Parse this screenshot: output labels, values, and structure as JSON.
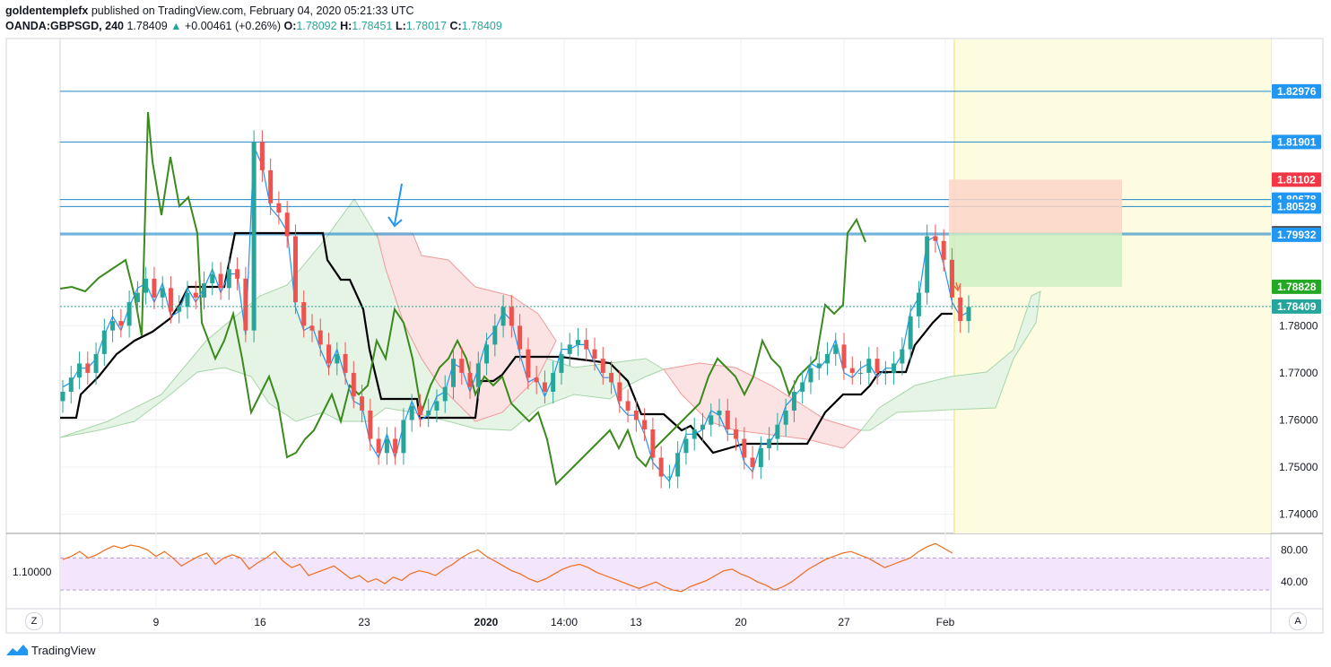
{
  "header": {
    "author": "goldentemplefx",
    "published_text": "published on TradingView.com, February 04, 2020 05:21:33 UTC",
    "symbol": "OANDA:GBPSGD, 240",
    "last": "1.78409",
    "change": "+0.00461 (+0.26%)",
    "o_label": "O:",
    "o_value": "1.78092",
    "h_label": "H:",
    "h_value": "1.78451",
    "l_label": "L:",
    "l_value": "1.78017",
    "c_label": "C:",
    "c_value": "1.78409"
  },
  "footer": {
    "brand": "TradingView"
  },
  "buttons": {
    "z": "Z",
    "a": "A"
  },
  "chart_data": {
    "type": "line",
    "ylim": [
      1.7365,
      1.84
    ],
    "y_ticks": [
      "1.74000",
      "1.75000",
      "1.76000",
      "1.77000",
      "1.78000"
    ],
    "x_tick_labels": [
      "9",
      "16",
      "23",
      "2020",
      "14:00",
      "13",
      "20",
      "27",
      "Feb"
    ],
    "price_levels": [
      1.82976,
      1.81901,
      1.80678,
      1.80529,
      1.79965,
      1.79932
    ],
    "price_tags": [
      {
        "label": "1.82976",
        "value": 1.82976,
        "color": "#2196f3"
      },
      {
        "label": "1.81901",
        "value": 1.81901,
        "color": "#2196f3"
      },
      {
        "label": "1.81102",
        "value": 1.81102,
        "color": "#f23645"
      },
      {
        "label": "1.80678",
        "value": 1.80678,
        "color": "#2196f3"
      },
      {
        "label": "1.80529",
        "value": 1.80529,
        "color": "#2196f3"
      },
      {
        "label": "1.79965",
        "value": 1.79965,
        "color": "#4a4a4a"
      },
      {
        "label": "1.79932",
        "value": 1.79932,
        "color": "#2196f3"
      },
      {
        "label": "1.78828",
        "value": 1.78828,
        "color": "#22a822"
      },
      {
        "label": "1.78409",
        "value": 1.78409,
        "color": "#26a69a"
      }
    ],
    "last_price": 1.78409,
    "position": {
      "stop": 1.81102,
      "entry": 1.79965,
      "target": 1.78828
    },
    "series": [
      {
        "values": [
          1.766,
          1.769,
          1.772,
          1.77,
          1.774,
          1.779,
          1.781,
          1.78,
          1.785,
          1.787,
          1.79,
          1.786,
          1.788,
          1.783,
          1.784,
          1.787,
          1.786,
          1.789,
          1.791,
          1.788,
          1.792,
          1.79,
          1.779,
          1.819,
          1.813,
          1.806,
          1.804,
          1.799,
          1.785,
          1.78,
          1.779,
          1.776,
          1.772,
          1.774,
          1.77,
          1.765,
          1.762,
          1.756,
          1.753,
          1.756,
          1.753,
          1.76,
          1.763,
          1.761,
          1.762,
          1.764,
          1.767,
          1.773,
          1.77,
          1.767,
          1.772,
          1.776,
          1.78,
          1.784,
          1.78,
          1.775,
          1.769,
          1.768,
          1.766,
          1.77,
          1.774,
          1.776,
          1.777,
          1.775,
          1.773,
          1.77,
          1.768,
          1.764,
          1.762,
          1.76,
          1.758,
          1.752,
          1.748,
          1.748,
          1.753,
          1.756,
          1.758,
          1.759,
          1.761,
          1.762,
          1.758,
          1.756,
          1.752,
          1.75,
          1.754,
          1.756,
          1.759,
          1.762,
          1.766,
          1.768,
          1.771,
          1.772,
          1.774,
          1.776,
          1.771,
          1.77,
          1.77,
          1.773,
          1.77,
          1.77,
          1.772,
          1.775,
          1.782,
          1.787,
          1.799,
          1.798,
          1.794,
          1.786,
          1.781,
          1.784
        ]
      }
    ],
    "rsi": {
      "label": "1.10000",
      "ticks": [
        "80.00",
        "40.00"
      ],
      "band": [
        70,
        30
      ],
      "ylim": [
        10,
        95
      ],
      "values": [
        68,
        72,
        78,
        70,
        74,
        80,
        85,
        82,
        86,
        84,
        80,
        72,
        78,
        70,
        60,
        66,
        72,
        76,
        62,
        70,
        74,
        70,
        56,
        64,
        70,
        78,
        66,
        58,
        62,
        48,
        52,
        56,
        60,
        52,
        44,
        48,
        40,
        44,
        38,
        46,
        42,
        50,
        54,
        52,
        48,
        56,
        62,
        70,
        76,
        80,
        72,
        66,
        60,
        54,
        50,
        44,
        40,
        44,
        50,
        56,
        60,
        62,
        58,
        52,
        48,
        44,
        40,
        36,
        32,
        36,
        40,
        34,
        30,
        28,
        34,
        38,
        42,
        48,
        54,
        56,
        50,
        46,
        40,
        36,
        30,
        34,
        40,
        48,
        56,
        62,
        68,
        72,
        76,
        78,
        74,
        70,
        64,
        58,
        62,
        66,
        70,
        78,
        84,
        88,
        82,
        76
      ]
    }
  }
}
